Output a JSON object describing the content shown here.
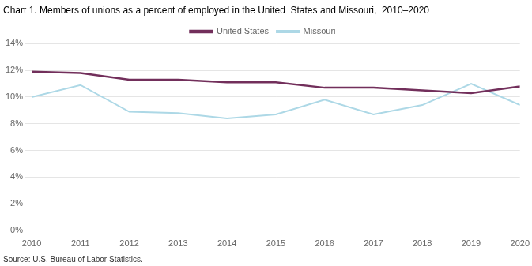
{
  "chart_data": {
    "type": "line",
    "title": "Chart 1. Members of unions as a percent of employed in the United  States and Missouri,  2010–2020",
    "annotations": [
      "Source: U.S. Bureau of Labor Statistics."
    ],
    "x": [
      2010,
      2011,
      2012,
      2013,
      2014,
      2015,
      2016,
      2017,
      2018,
      2019,
      2020
    ],
    "series": [
      {
        "name": "United States",
        "color": "#722F5B",
        "values": [
          11.9,
          11.8,
          11.3,
          11.3,
          11.1,
          11.1,
          10.7,
          10.7,
          10.5,
          10.3,
          10.8
        ]
      },
      {
        "name": "Missouri",
        "color": "#ADD8E6",
        "values": [
          10.0,
          10.9,
          8.9,
          8.8,
          8.4,
          8.7,
          9.8,
          8.7,
          9.4,
          11.0,
          9.4
        ]
      }
    ],
    "xlim": [
      2010,
      2020
    ],
    "xticks": [
      2010,
      2011,
      2012,
      2013,
      2014,
      2015,
      2016,
      2017,
      2018,
      2019,
      2020
    ],
    "ylim": [
      0,
      14
    ],
    "yticks": [
      {
        "value": 0,
        "label": "0%"
      },
      {
        "value": 2,
        "label": "2%"
      },
      {
        "value": 4,
        "label": "4%"
      },
      {
        "value": 6,
        "label": "6%"
      },
      {
        "value": 8,
        "label": "8%"
      },
      {
        "value": 10,
        "label": "10%"
      },
      {
        "value": 12,
        "label": "12%"
      },
      {
        "value": 14,
        "label": "14%"
      }
    ],
    "grid": true,
    "legend": "top"
  }
}
